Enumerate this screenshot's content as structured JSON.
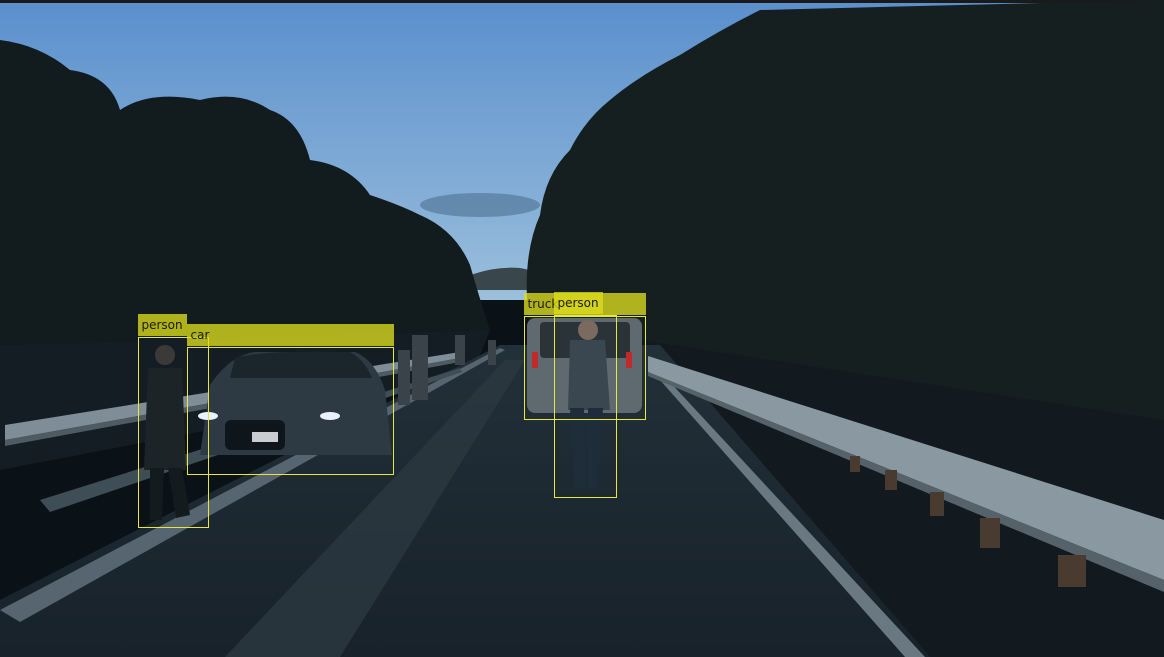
{
  "scene": {
    "colors": {
      "sky_top": "#5a8fcd",
      "sky_bottom": "#8db5d8",
      "tree": "#141d1f",
      "road": "#1b2730",
      "box_stroke": "#e8e83a",
      "label_fill": "#dcdc1e"
    }
  },
  "detections": [
    {
      "label": "person"
    },
    {
      "label": "car"
    },
    {
      "label": "truck"
    },
    {
      "label": "person"
    }
  ]
}
